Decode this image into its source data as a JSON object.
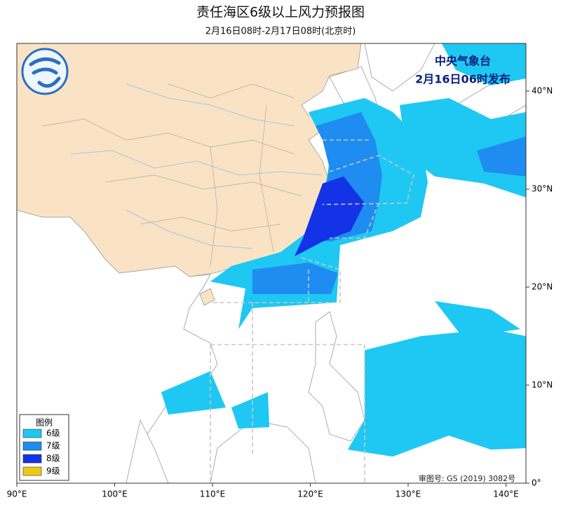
{
  "header": {
    "title": "责任海区6级以上风力预报图",
    "subtitle": "2月16日08时-2月17日08时(北京时)"
  },
  "issuer": {
    "name": "中央气象台",
    "time": "2月16日06时发布"
  },
  "legend": {
    "title": "图例",
    "items": [
      {
        "label": "6级",
        "color": "#1ec8f2"
      },
      {
        "label": "7级",
        "color": "#1e8cf0"
      },
      {
        "label": "8级",
        "color": "#1432e6"
      },
      {
        "label": "9级",
        "color": "#f0c814"
      }
    ]
  },
  "axes": {
    "lon_ticks": [
      {
        "value": 90,
        "label": "90°E"
      },
      {
        "value": 100,
        "label": "100°E"
      },
      {
        "value": 110,
        "label": "110°E"
      },
      {
        "value": 120,
        "label": "120°E"
      },
      {
        "value": 130,
        "label": "130°E"
      },
      {
        "value": 140,
        "label": "140°E"
      }
    ],
    "lat_ticks": [
      {
        "value": 40,
        "label": "40°N"
      },
      {
        "value": 30,
        "label": "30°N"
      },
      {
        "value": 20,
        "label": "20°N"
      },
      {
        "value": 10,
        "label": "10°N"
      },
      {
        "value": 0,
        "label": "0°"
      }
    ]
  },
  "map": {
    "land_color": "#fae3c4",
    "sea_color": "#ffffff"
  },
  "footer": {
    "approval": "审图号: GS (2019) 3082号"
  }
}
